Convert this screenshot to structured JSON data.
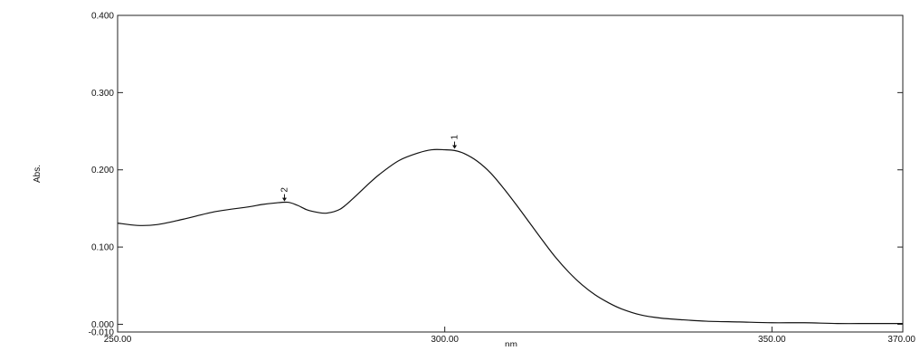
{
  "chart_data": {
    "type": "line",
    "xlabel": "nm",
    "ylabel": "Abs.",
    "xlim": [
      250,
      370
    ],
    "ylim": [
      -0.01,
      0.4
    ],
    "x_ticks": [
      250,
      300,
      350,
      370
    ],
    "x_tick_labels": [
      "250.00",
      "300.00",
      "350.00",
      "370.00"
    ],
    "y_ticks": [
      -0.01,
      0.0,
      0.1,
      0.2,
      0.3,
      0.4
    ],
    "y_tick_labels": [
      "-0.010",
      "0.000",
      "0.100",
      "0.200",
      "0.300",
      "0.400"
    ],
    "grid": false,
    "line_color": "#111111",
    "series": [
      {
        "x": [
          250,
          253,
          256,
          260,
          265,
          270,
          272,
          274,
          276,
          277.5,
          279,
          280.5,
          282,
          284,
          286,
          288,
          290,
          293,
          296,
          298,
          300,
          301.5,
          303,
          305,
          307,
          309,
          311,
          313,
          315,
          317,
          319,
          321,
          323,
          325,
          327,
          330,
          333,
          336,
          340,
          345,
          350,
          355,
          360,
          365,
          370
        ],
        "y": [
          0.131,
          0.128,
          0.129,
          0.136,
          0.146,
          0.152,
          0.155,
          0.157,
          0.158,
          0.154,
          0.148,
          0.145,
          0.144,
          0.149,
          0.163,
          0.179,
          0.194,
          0.212,
          0.222,
          0.226,
          0.226,
          0.225,
          0.221,
          0.211,
          0.196,
          0.176,
          0.154,
          0.131,
          0.108,
          0.086,
          0.067,
          0.051,
          0.038,
          0.028,
          0.02,
          0.012,
          0.008,
          0.006,
          0.004,
          0.003,
          0.002,
          0.002,
          0.001,
          0.001,
          0.001
        ]
      }
    ],
    "peaks": [
      {
        "label": "1",
        "x": 301.5,
        "y": 0.226
      },
      {
        "label": "2",
        "x": 275.5,
        "y": 0.158
      }
    ]
  }
}
